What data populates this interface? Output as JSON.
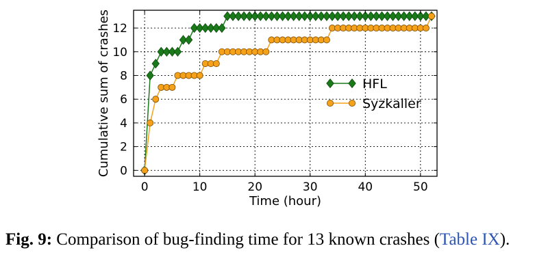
{
  "chart_data": {
    "type": "line",
    "xlabel": "Time (hour)",
    "ylabel": "Cumulative sum of crashes",
    "xlim": [
      -2,
      53
    ],
    "ylim": [
      -0.5,
      13.5
    ],
    "x_ticks": [
      0,
      10,
      20,
      30,
      40,
      50
    ],
    "y_ticks": [
      0,
      2,
      4,
      6,
      8,
      10,
      12
    ],
    "grid": true,
    "legend_position": "center-right",
    "series": [
      {
        "name": "HFL",
        "color": "#1a7a1a",
        "marker": "diamond",
        "x": [
          0,
          1,
          2,
          3,
          4,
          5,
          6,
          7,
          8,
          9,
          10,
          11,
          12,
          13,
          14,
          15,
          16,
          17,
          18,
          19,
          20,
          21,
          22,
          23,
          24,
          25,
          26,
          27,
          28,
          29,
          30,
          31,
          32,
          33,
          34,
          35,
          36,
          37,
          38,
          39,
          40,
          41,
          42,
          43,
          44,
          45,
          46,
          47,
          48,
          49,
          50,
          51,
          52
        ],
        "y": [
          0,
          8,
          9,
          10,
          10,
          10,
          10,
          11,
          11,
          12,
          12,
          12,
          12,
          12,
          12,
          13,
          13,
          13,
          13,
          13,
          13,
          13,
          13,
          13,
          13,
          13,
          13,
          13,
          13,
          13,
          13,
          13,
          13,
          13,
          13,
          13,
          13,
          13,
          13,
          13,
          13,
          13,
          13,
          13,
          13,
          13,
          13,
          13,
          13,
          13,
          13,
          13,
          13
        ]
      },
      {
        "name": "Syzkaller",
        "color": "#f5a21a",
        "marker": "circle",
        "x": [
          0,
          1,
          2,
          3,
          4,
          5,
          6,
          7,
          8,
          9,
          10,
          11,
          12,
          13,
          14,
          15,
          16,
          17,
          18,
          19,
          20,
          21,
          22,
          23,
          24,
          25,
          26,
          27,
          28,
          29,
          30,
          31,
          32,
          33,
          34,
          35,
          36,
          37,
          38,
          39,
          40,
          41,
          42,
          43,
          44,
          45,
          46,
          47,
          48,
          49,
          50,
          51,
          52
        ],
        "y": [
          0,
          4,
          6,
          7,
          7,
          7,
          8,
          8,
          8,
          8,
          8,
          9,
          9,
          9,
          10,
          10,
          10,
          10,
          10,
          10,
          10,
          10,
          10,
          11,
          11,
          11,
          11,
          11,
          11,
          11,
          11,
          11,
          11,
          11,
          12,
          12,
          12,
          12,
          12,
          12,
          12,
          12,
          12,
          12,
          12,
          12,
          12,
          12,
          12,
          12,
          12,
          12,
          13
        ]
      }
    ]
  },
  "caption": {
    "label": "Fig. 9:",
    "text": " Comparison of bug-finding time for 13 known crashes (",
    "ref": "Table IX",
    "end": ")."
  }
}
